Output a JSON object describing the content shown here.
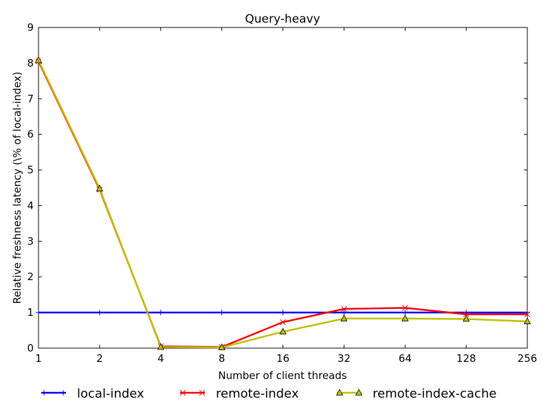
{
  "chart_data": {
    "type": "line",
    "title": "Query-heavy",
    "xlabel": "Number of client threads",
    "ylabel": "Relative freshness latency (\\% of local-index)",
    "x": [
      1,
      2,
      4,
      8,
      16,
      32,
      64,
      128,
      256
    ],
    "x_tick_labels": [
      "1",
      "2",
      "4",
      "8",
      "16",
      "32",
      "64",
      "128",
      "256"
    ],
    "x_scale": "log2",
    "ylim": [
      0,
      9
    ],
    "y_ticks": [
      0,
      1,
      2,
      3,
      4,
      5,
      6,
      7,
      8,
      9
    ],
    "grid": false,
    "legend_position": "bottom",
    "series": [
      {
        "name": "local-index",
        "color": "#0000ff",
        "marker": "plus",
        "values": [
          1,
          1,
          1,
          1,
          1,
          1,
          1,
          1,
          1
        ]
      },
      {
        "name": "remote-index",
        "color": "#ff0000",
        "marker": "x",
        "values": [
          8.05,
          4.45,
          0.05,
          0.03,
          0.73,
          1.1,
          1.13,
          0.95,
          0.95
        ]
      },
      {
        "name": "remote-index-cache",
        "color": "#bfbf00",
        "marker": "triangle",
        "values": [
          8.08,
          4.48,
          0.03,
          0.02,
          0.46,
          0.83,
          0.83,
          0.82,
          0.75
        ]
      }
    ]
  }
}
